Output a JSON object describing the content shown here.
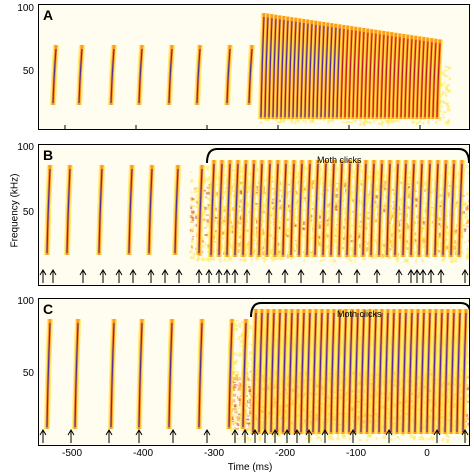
{
  "panels": [
    {
      "label": "A",
      "y_ticks": [
        "100",
        "50"
      ]
    },
    {
      "label": "B",
      "y_ticks": [
        "100",
        "50"
      ],
      "annotation": "Moth clicks"
    },
    {
      "label": "C",
      "y_ticks": [
        "100",
        "50"
      ],
      "annotation": "Moth clicks"
    }
  ],
  "axes": {
    "ylabel": "Frequency (kHz)",
    "xlabel": "Time (ms)",
    "x_ticks": [
      "-500",
      "-400",
      "-300",
      "-200",
      "-100",
      "0"
    ]
  },
  "colors": {
    "background": "#fffdf0",
    "spectral_low": "#ffe84a",
    "spectral_mid": "#ff8c1a",
    "spectral_high": "#c0182a",
    "click_core": "#5a2a9a"
  }
}
